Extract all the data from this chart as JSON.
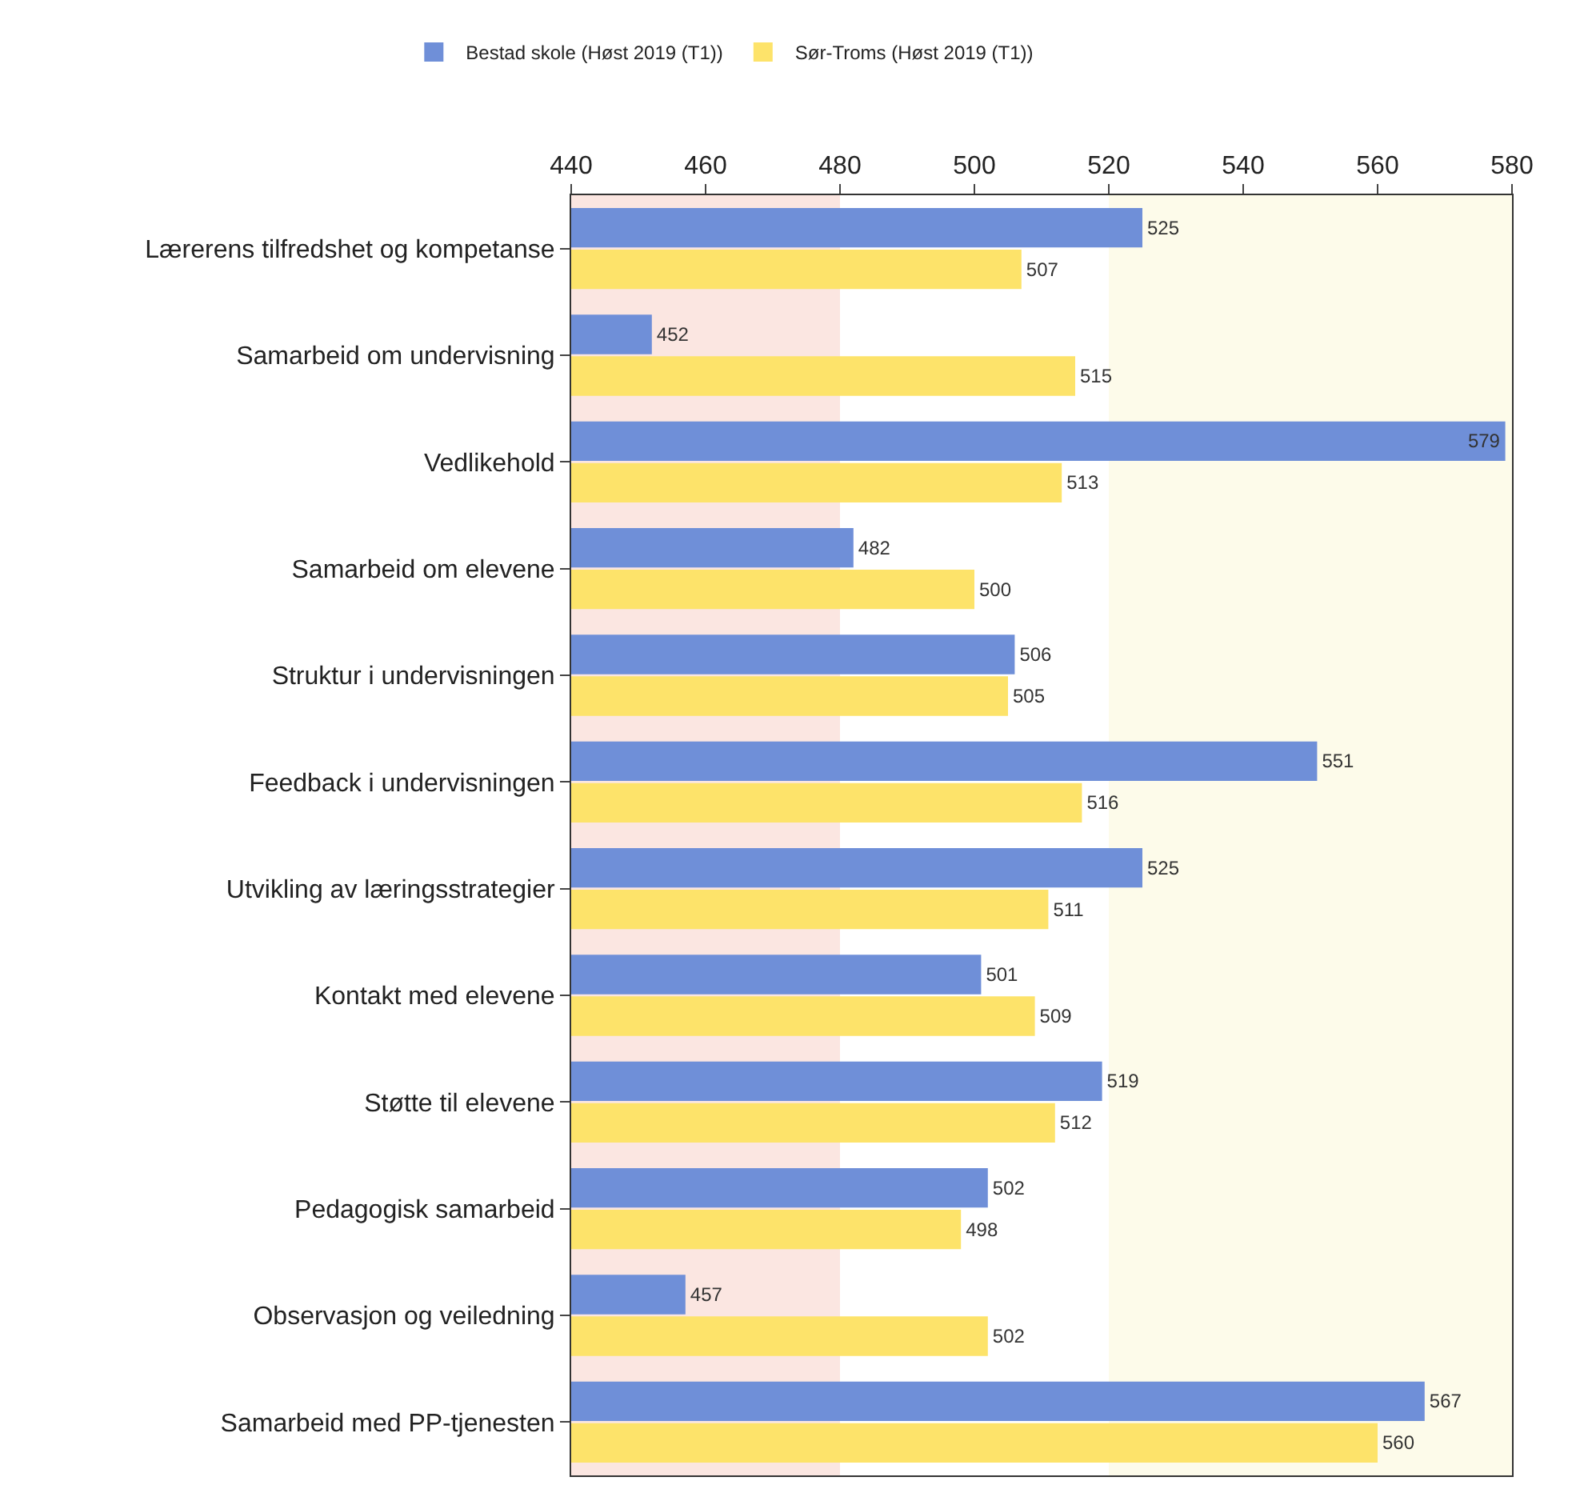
{
  "chart_data": {
    "type": "bar",
    "orientation": "horizontal",
    "categories": [
      "Lærerens tilfredshet og kompetanse",
      "Samarbeid om undervisning",
      "Vedlikehold",
      "Samarbeid om elevene",
      "Struktur i undervisningen",
      "Feedback i undervisningen",
      "Utvikling av læringsstrategier",
      "Kontakt med elevene",
      "Støtte til elevene",
      "Pedagogisk samarbeid",
      "Observasjon og veiledning",
      "Samarbeid med PP-tjenesten"
    ],
    "series": [
      {
        "name": "Bestad skole (Høst 2019 (T1))",
        "color": "#6f8fd8",
        "values": [
          525,
          452,
          579,
          482,
          506,
          551,
          525,
          501,
          519,
          502,
          457,
          567
        ]
      },
      {
        "name": "Sør-Troms (Høst 2019 (T1))",
        "color": "#fde36a",
        "values": [
          507,
          515,
          513,
          500,
          505,
          516,
          511,
          509,
          512,
          498,
          502,
          560
        ]
      }
    ],
    "xlim": [
      440,
      580
    ],
    "xticks": [
      440,
      460,
      480,
      500,
      520,
      540,
      560,
      580
    ],
    "bands": [
      {
        "axis": "x",
        "from": 440,
        "to": 480,
        "color": "#fbe6e1"
      },
      {
        "axis": "x",
        "from": 520,
        "to": 580,
        "color": "#fdfbea"
      }
    ],
    "data_labels": true,
    "grid": false,
    "legend": "top"
  }
}
